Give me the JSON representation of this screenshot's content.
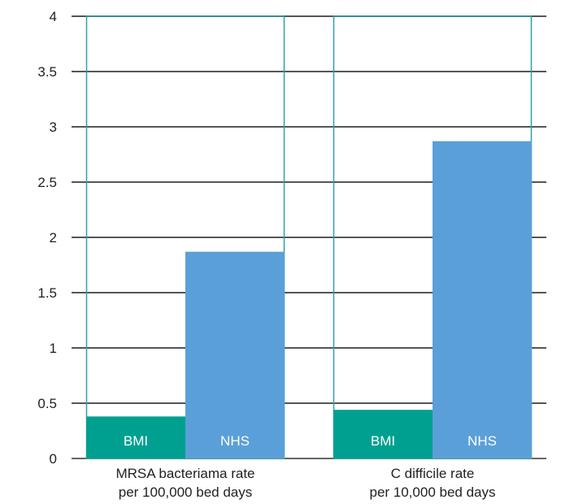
{
  "chart_data": {
    "type": "bar",
    "categories": [
      [
        "MRSA bacteriama rate",
        "per 100,000 bed days"
      ],
      [
        "C difficile rate",
        "per 10,000 bed days"
      ]
    ],
    "series": [
      {
        "name": "BMI",
        "values": [
          0.38,
          0.44
        ],
        "color": "#00a090"
      },
      {
        "name": "NHS",
        "values": [
          1.87,
          2.87
        ],
        "color": "#5b9fd8"
      }
    ],
    "ylim": [
      0,
      4
    ],
    "yticks": [
      "0",
      "0.5",
      "1",
      "1.5",
      "2",
      "2.5",
      "3",
      "3.5",
      "4"
    ],
    "grid": true,
    "colors": {
      "outline": "#2aa0a8",
      "gridline": "#555555",
      "bar_text": "#ffffff"
    }
  }
}
